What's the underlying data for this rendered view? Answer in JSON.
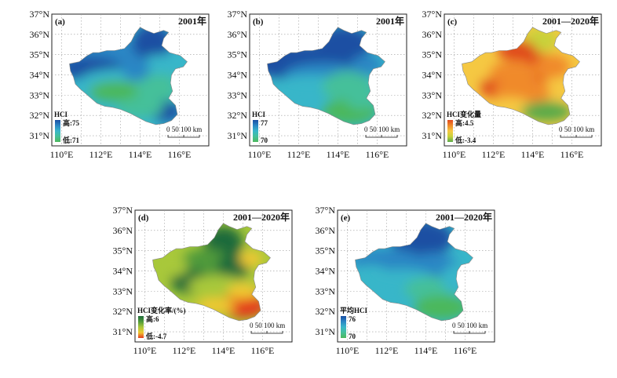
{
  "axes": {
    "lat_ticks": [
      "31°N",
      "32°N",
      "33°N",
      "34°N",
      "35°N",
      "36°N",
      "37°N"
    ],
    "lon_ticks": [
      "110°E",
      "112°E",
      "114°E",
      "116°E"
    ]
  },
  "panels": [
    {
      "label": "(a)",
      "title": "2001年",
      "legend": {
        "title": "HCI",
        "high": "高:75",
        "low": "低:71"
      },
      "colors": [
        "#1b4fa3",
        "#2a86c4",
        "#38b6c9",
        "#44c09a",
        "#4bb85c"
      ],
      "pattern": "a",
      "scale": "0 50 100 km"
    },
    {
      "label": "(b)",
      "title": "2001年",
      "legend": {
        "title": "HCI",
        "high": "77",
        "low": "70"
      },
      "colors": [
        "#1b4fa3",
        "#2a86c4",
        "#38b6c9",
        "#44c09a",
        "#4bb85c"
      ],
      "pattern": "b",
      "scale": "0 50 100 km"
    },
    {
      "label": "(c)",
      "title": "2001—2020年",
      "legend": {
        "title": "HCI变化量",
        "high": "高:4.5",
        "low": "低:-3.4"
      },
      "colors": [
        "#e0481e",
        "#f08a2a",
        "#f5c842",
        "#c8d23a",
        "#5aaa4a"
      ],
      "pattern": "c",
      "scale": "0 50 100 km"
    },
    {
      "label": "(d)",
      "title": "2001—2020年",
      "legend": {
        "title": "HCI变化率/(%)",
        "high": "高:6",
        "low": "低:-4.7"
      },
      "colors": [
        "#1e6b3a",
        "#4f9a3a",
        "#a8c83a",
        "#f0c832",
        "#e43a1e"
      ],
      "pattern": "d",
      "scale": "0 50 100 km"
    },
    {
      "label": "(e)",
      "title": "2001—2020年",
      "legend": {
        "title": "平均HCI",
        "high": "76",
        "low": "70"
      },
      "colors": [
        "#1b4fa3",
        "#2a86c4",
        "#38b6c9",
        "#44c09a",
        "#4bb85c"
      ],
      "pattern": "e",
      "scale": "0 50 100 km"
    }
  ]
}
